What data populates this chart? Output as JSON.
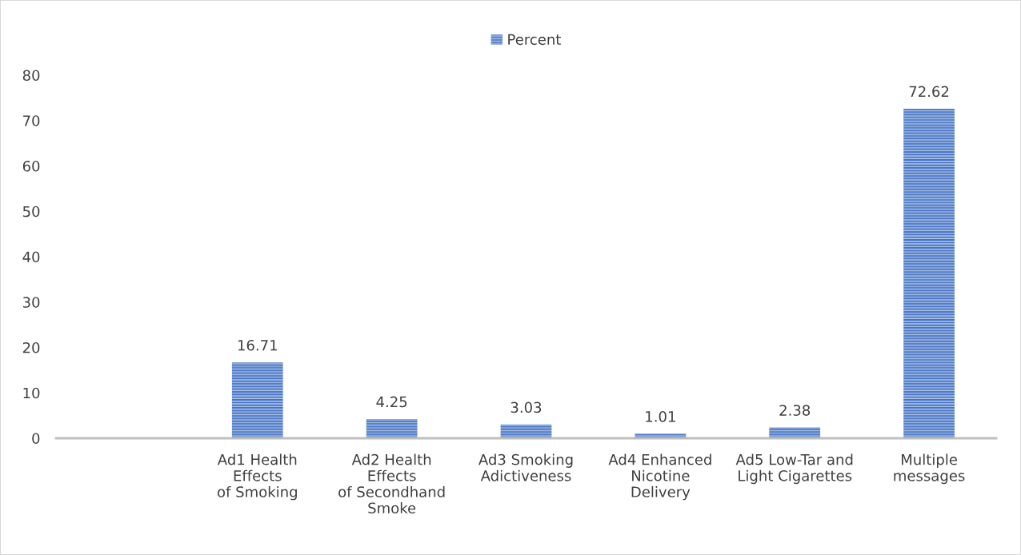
{
  "chart_data": {
    "type": "bar",
    "categories": [
      null,
      "Ad1 Health\nEffects\nof Smoking",
      "Ad2 Health\nEffects\nof Secondhand\nSmoke",
      "Ad3 Smoking\nAdictiveness",
      "Ad4 Enhanced\nNicotine\nDelivery",
      "Ad5 Low-Tar and\nLight Cigarettes",
      "Multiple\nmessages"
    ],
    "series": [
      {
        "name": "Percent",
        "color": "#4472c4",
        "values": [
          null,
          16.71,
          4.25,
          3.03,
          1.01,
          2.38,
          72.62
        ]
      }
    ],
    "ylim": [
      0,
      80
    ],
    "yticks": [
      0,
      10,
      20,
      30,
      40,
      50,
      60,
      70,
      80
    ],
    "data_labels": true,
    "legend": "top",
    "grid": false
  }
}
